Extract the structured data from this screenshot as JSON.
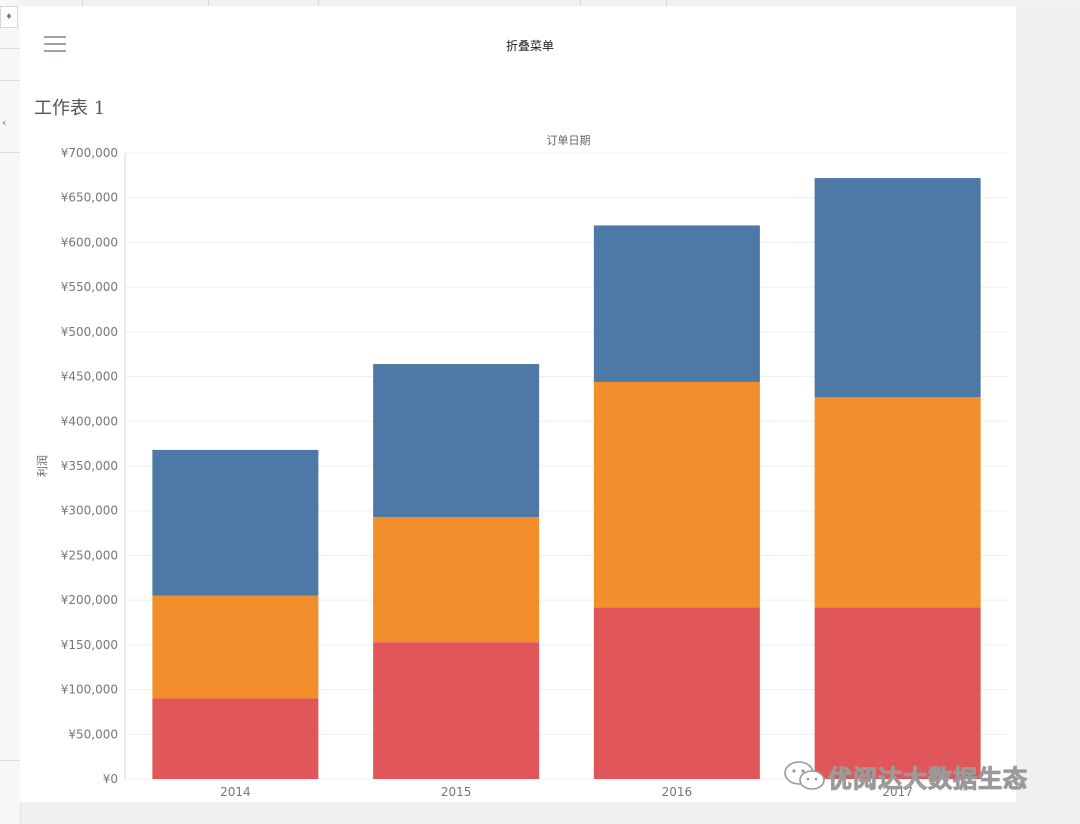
{
  "menu": {
    "title": "折叠菜单"
  },
  "sheet": {
    "title": "工作表 1"
  },
  "watermark": {
    "text": "优阅达大数据生态"
  },
  "colors": {
    "segment_1": "#e15759",
    "segment_2": "#f28e2b",
    "segment_3": "#4e79a7",
    "grid": "#efefef",
    "axis_text": "#777777"
  },
  "icons": {
    "menu": "hamburger-icon",
    "wechat": "wechat-icon"
  },
  "chart_data": {
    "type": "bar",
    "stacked": true,
    "title": "订单日期",
    "xlabel": "",
    "ylabel": "利润",
    "categories": [
      "2014",
      "2015",
      "2016",
      "2017"
    ],
    "series": [
      {
        "values": [
          90000,
          153000,
          192000,
          192000
        ]
      },
      {
        "values": [
          115000,
          140000,
          252000,
          235000
        ]
      },
      {
        "values": [
          163000,
          171000,
          175000,
          245000
        ]
      }
    ],
    "ylim": [
      0,
      700000
    ],
    "yticks": [
      0,
      50000,
      100000,
      150000,
      200000,
      250000,
      300000,
      350000,
      400000,
      450000,
      500000,
      550000,
      600000,
      650000,
      700000
    ],
    "ytick_labels": [
      "¥0",
      "¥50,000",
      "¥100,000",
      "¥150,000",
      "¥200,000",
      "¥250,000",
      "¥300,000",
      "¥350,000",
      "¥400,000",
      "¥450,000",
      "¥500,000",
      "¥550,000",
      "¥600,000",
      "¥650,000",
      "¥700,000"
    ],
    "grid": true,
    "legend": "none"
  }
}
